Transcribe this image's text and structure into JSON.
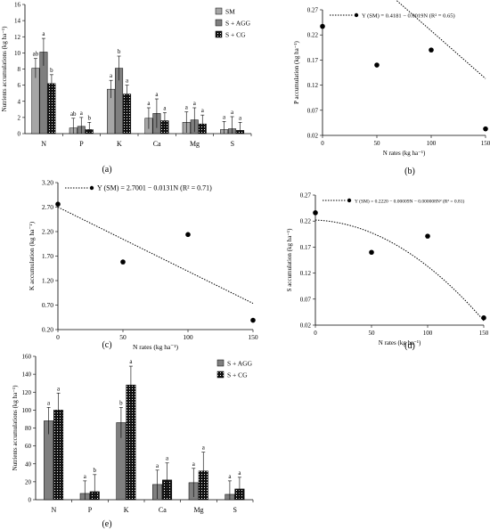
{
  "panels": {
    "a": {
      "caption": "(a)"
    },
    "b": {
      "caption": "(b)"
    },
    "c": {
      "caption": "(c)"
    },
    "d": {
      "caption": "(d)"
    },
    "e": {
      "caption": "(e)"
    }
  },
  "colors": {
    "sm": "#a6a6a6",
    "agg": "#7f7f7f",
    "cg": "#111111",
    "axis": "#000000"
  },
  "chart_data": [
    {
      "id": "a",
      "type": "bar",
      "ylabel": "Nutrients accumulations (kg ha⁻¹)",
      "ylim": [
        0,
        16
      ],
      "yticks": [
        0,
        2,
        4,
        6,
        8,
        10,
        12,
        14,
        16
      ],
      "categories": [
        "N",
        "P",
        "K",
        "Ca",
        "Mg",
        "S"
      ],
      "legend_position": "top-right",
      "series": [
        {
          "name": "SM",
          "values": [
            8.1,
            0.7,
            5.5,
            1.9,
            1.4,
            0.5
          ],
          "errors": [
            1.2,
            1.2,
            1.1,
            1.3,
            1.3,
            1.0
          ],
          "letters": [
            "ab",
            "ab",
            "a",
            "a",
            "a",
            "a"
          ]
        },
        {
          "name": "S + AGG",
          "values": [
            10.1,
            0.9,
            8.1,
            2.5,
            1.7,
            0.6
          ],
          "errors": [
            1.7,
            1.1,
            1.5,
            1.8,
            1.5,
            1.5
          ],
          "letters": [
            "a",
            "a",
            "b",
            "a",
            "a",
            "a"
          ]
        },
        {
          "name": "S + CG",
          "values": [
            6.2,
            0.5,
            4.9,
            1.6,
            1.2,
            0.4
          ],
          "errors": [
            1.1,
            0.9,
            1.1,
            1.0,
            1.1,
            1.0
          ],
          "letters": [
            "b",
            "b",
            "a",
            "a",
            "a",
            "a"
          ]
        }
      ]
    },
    {
      "id": "b",
      "type": "scatter",
      "xlabel": "N rates (kg ha⁻¹)",
      "ylabel": "P accumulation (kg ha⁻¹)",
      "xlim": [
        0,
        150
      ],
      "xticks": [
        0,
        50,
        100,
        150
      ],
      "ylim": [
        0.02,
        0.27
      ],
      "yticks": [
        0.02,
        0.07,
        0.12,
        0.17,
        0.22,
        0.27
      ],
      "x": [
        0,
        50,
        100,
        150
      ],
      "y": [
        0.237,
        0.16,
        0.19,
        0.033
      ],
      "trendline": {
        "kind": "linear",
        "intercept": 0.4181,
        "coefficients": [
          -0.0019
        ]
      },
      "legend_label": "Y (SM) = 0.4181 − 0.0019N (R² = 0.65)",
      "legend_position": "top"
    },
    {
      "id": "c",
      "type": "scatter",
      "xlabel": "N rates (kg ha⁻¹)",
      "ylabel": "K accumulation (kg ha⁻¹)",
      "xlim": [
        0,
        150
      ],
      "xticks": [
        0,
        50,
        100,
        150
      ],
      "ylim": [
        0.2,
        3.2
      ],
      "yticks": [
        0.2,
        0.7,
        1.2,
        1.7,
        2.2,
        2.7,
        3.2
      ],
      "ytick_labels": [
        "0.20",
        "0.70",
        "1.20",
        "1.70",
        "2.20",
        "2.70",
        "3.20"
      ],
      "x": [
        0,
        50,
        100,
        150
      ],
      "y": [
        2.76,
        1.58,
        2.14,
        0.39
      ],
      "trendline": {
        "kind": "linear",
        "intercept": 2.7001,
        "coefficients": [
          -0.0131
        ]
      },
      "legend_label": "Y (SM) = 2.7001 − 0.0131N (R² = 0.71)",
      "legend_position": "top"
    },
    {
      "id": "d",
      "type": "scatter",
      "xlabel": "N rates (kg ha⁻¹)",
      "ylabel": "S accumulation (kg ha⁻¹)",
      "xlim": [
        0,
        150
      ],
      "xticks": [
        0,
        50,
        100,
        150
      ],
      "ylim": [
        0.02,
        0.27
      ],
      "yticks": [
        0.02,
        0.07,
        0.12,
        0.17,
        0.22,
        0.27
      ],
      "x": [
        0,
        50,
        100,
        150
      ],
      "y": [
        0.236,
        0.16,
        0.191,
        0.034
      ],
      "trendline": {
        "kind": "quadratic",
        "intercept": 0.222,
        "coefficients": [
          -9e-05,
          -8e-06
        ]
      },
      "legend_label": "Y (SM) = 0.2220 − 0.00009N − 0.000008N² (R² = 0.81)",
      "legend_position": "top"
    },
    {
      "id": "e",
      "type": "bar",
      "ylabel": "Nutrients accumulations (kg ha⁻¹)",
      "ylim": [
        0,
        160
      ],
      "yticks": [
        0,
        20,
        40,
        60,
        80,
        100,
        120,
        140,
        160
      ],
      "categories": [
        "N",
        "P",
        "K",
        "Ca",
        "Mg",
        "S"
      ],
      "legend_position": "top-right",
      "series": [
        {
          "name": "S + AGG",
          "values": [
            88,
            7,
            86,
            17,
            19,
            6
          ],
          "errors": [
            15,
            14,
            17,
            16,
            16,
            15
          ],
          "letters": [
            "a",
            "a",
            "b",
            "a",
            "a",
            "a"
          ]
        },
        {
          "name": "S + CG",
          "values": [
            100,
            9,
            128,
            22,
            32,
            12
          ],
          "errors": [
            19,
            19,
            21,
            19,
            21,
            13
          ],
          "letters": [
            "a",
            "b",
            "a",
            "a",
            "a",
            "a"
          ]
        }
      ]
    }
  ]
}
